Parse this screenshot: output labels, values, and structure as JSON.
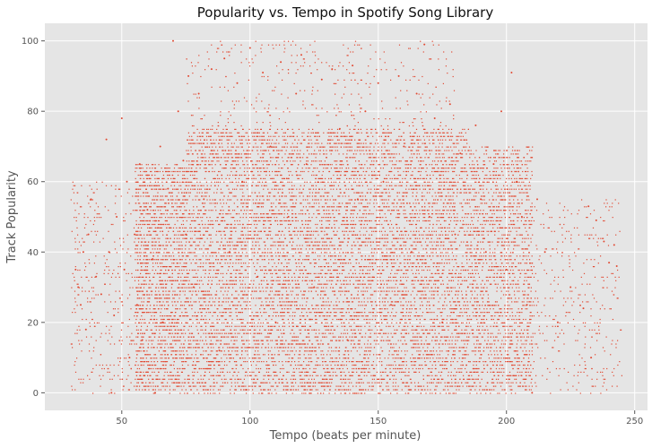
{
  "chart_data": {
    "type": "scatter",
    "title": "Popularity vs. Tempo in Spotify Song Library",
    "xlabel": "Tempo (beats per minute)",
    "ylabel": "Track Popularity",
    "xlim": [
      20,
      255
    ],
    "ylim": [
      -5,
      105
    ],
    "xticks": [
      50,
      100,
      150,
      200,
      250
    ],
    "yticks": [
      0,
      20,
      40,
      60,
      80,
      100
    ],
    "grid": true,
    "background": "#e5e5e5",
    "grid_color": "#ffffff",
    "marker_color": "#e24a33",
    "marker_size": 1,
    "points_note_density_bins": [
      {
        "x": [
          75,
          185
        ],
        "y": [
          0,
          75
        ],
        "density": "high"
      },
      {
        "x": [
          55,
          75
        ],
        "y": [
          0,
          65
        ],
        "density": "medium"
      },
      {
        "x": [
          185,
          210
        ],
        "y": [
          0,
          70
        ],
        "density": "medium"
      },
      {
        "x": [
          30,
          55
        ],
        "y": [
          0,
          60
        ],
        "density": "low"
      },
      {
        "x": [
          210,
          245
        ],
        "y": [
          0,
          55
        ],
        "density": "low"
      },
      {
        "x": [
          75,
          180
        ],
        "y": [
          75,
          100
        ],
        "density": "low"
      }
    ],
    "points": [
      [
        32,
        35
      ],
      [
        33,
        30
      ],
      [
        34,
        25
      ],
      [
        35,
        40
      ],
      [
        36,
        18
      ],
      [
        37,
        45
      ],
      [
        38,
        55
      ],
      [
        40,
        33
      ],
      [
        42,
        28
      ],
      [
        44,
        72
      ],
      [
        45,
        40
      ],
      [
        46,
        0
      ],
      [
        47,
        22
      ],
      [
        48,
        50
      ],
      [
        50,
        78
      ],
      [
        51,
        35
      ],
      [
        52,
        60
      ],
      [
        53,
        10
      ],
      [
        55,
        45
      ],
      [
        56,
        25
      ],
      [
        57,
        65
      ],
      [
        58,
        15
      ],
      [
        60,
        52
      ],
      [
        62,
        38
      ],
      [
        63,
        0
      ],
      [
        65,
        70
      ],
      [
        66,
        20
      ],
      [
        68,
        58
      ],
      [
        70,
        100
      ],
      [
        72,
        80
      ],
      [
        74,
        66
      ],
      [
        75,
        45
      ],
      [
        76,
        90
      ],
      [
        78,
        30
      ],
      [
        80,
        85
      ],
      [
        82,
        55
      ],
      [
        85,
        92
      ],
      [
        88,
        12
      ],
      [
        90,
        95
      ],
      [
        92,
        40
      ],
      [
        95,
        88
      ],
      [
        97,
        60
      ],
      [
        100,
        98
      ],
      [
        103,
        33
      ],
      [
        105,
        91
      ],
      [
        108,
        70
      ],
      [
        110,
        20
      ],
      [
        112,
        94
      ],
      [
        115,
        50
      ],
      [
        118,
        85
      ],
      [
        120,
        96
      ],
      [
        122,
        65
      ],
      [
        125,
        30
      ],
      [
        128,
        89
      ],
      [
        130,
        45
      ],
      [
        132,
        92
      ],
      [
        135,
        75
      ],
      [
        138,
        15
      ],
      [
        140,
        93
      ],
      [
        142,
        55
      ],
      [
        145,
        80
      ],
      [
        148,
        35
      ],
      [
        150,
        88
      ],
      [
        152,
        60
      ],
      [
        155,
        25
      ],
      [
        158,
        90
      ],
      [
        160,
        70
      ],
      [
        163,
        40
      ],
      [
        165,
        85
      ],
      [
        168,
        99
      ],
      [
        170,
        50
      ],
      [
        172,
        78
      ],
      [
        175,
        20
      ],
      [
        178,
        82
      ],
      [
        180,
        45
      ],
      [
        182,
        68
      ],
      [
        185,
        30
      ],
      [
        188,
        76
      ],
      [
        190,
        55
      ],
      [
        192,
        40
      ],
      [
        195,
        65
      ],
      [
        198,
        80
      ],
      [
        200,
        35
      ],
      [
        202,
        91
      ],
      [
        204,
        60
      ],
      [
        206,
        50
      ],
      [
        208,
        25
      ],
      [
        210,
        0
      ],
      [
        212,
        55
      ],
      [
        215,
        40
      ],
      [
        220,
        20
      ],
      [
        225,
        30
      ],
      [
        230,
        24
      ],
      [
        232,
        53
      ],
      [
        233,
        10
      ],
      [
        235,
        49
      ],
      [
        238,
        43
      ],
      [
        240,
        37
      ],
      [
        242,
        42
      ],
      [
        243,
        36
      ]
    ]
  }
}
